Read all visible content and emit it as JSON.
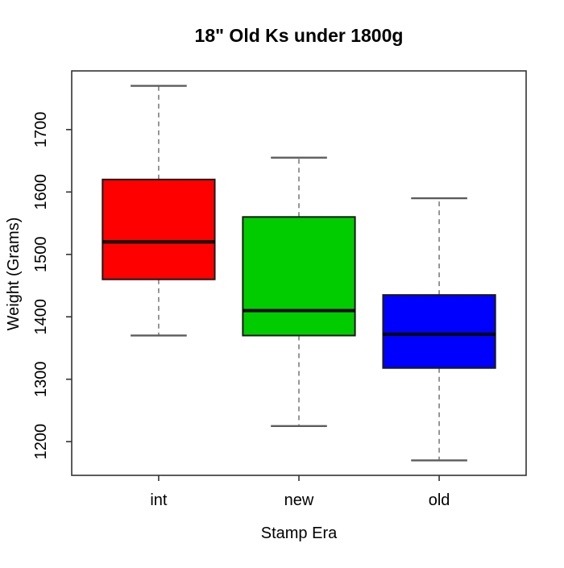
{
  "chart_data": {
    "type": "boxplot",
    "title": "18\" Old Ks under 1800g",
    "xlabel": "Stamp Era",
    "ylabel": "Weight (Grams)",
    "categories": [
      "int",
      "new",
      "old"
    ],
    "yticks": [
      1200,
      1300,
      1400,
      1500,
      1600,
      1700
    ],
    "ylim": [
      1146,
      1794
    ],
    "grid": false,
    "legend": "none",
    "x_pad": 0.62,
    "box_width": 0.8,
    "cap_width": 0.4,
    "series": [
      {
        "name": "int",
        "color": "#ff0000",
        "whisker_low": 1370,
        "q1": 1460,
        "median": 1520,
        "q3": 1620,
        "whisker_high": 1770
      },
      {
        "name": "new",
        "color": "#00cc00",
        "whisker_low": 1225,
        "q1": 1370,
        "median": 1410,
        "q3": 1560,
        "whisker_high": 1655
      },
      {
        "name": "old",
        "color": "#0000ff",
        "whisker_low": 1170,
        "q1": 1318,
        "median": 1372,
        "q3": 1435,
        "whisker_high": 1590
      }
    ],
    "colors": {
      "box_border": "#1a1a1a",
      "median": "#000000",
      "whisker": "#7d7d7d",
      "cap": "#5c5c5c",
      "frame": "#333333",
      "tick": "#333333"
    }
  }
}
